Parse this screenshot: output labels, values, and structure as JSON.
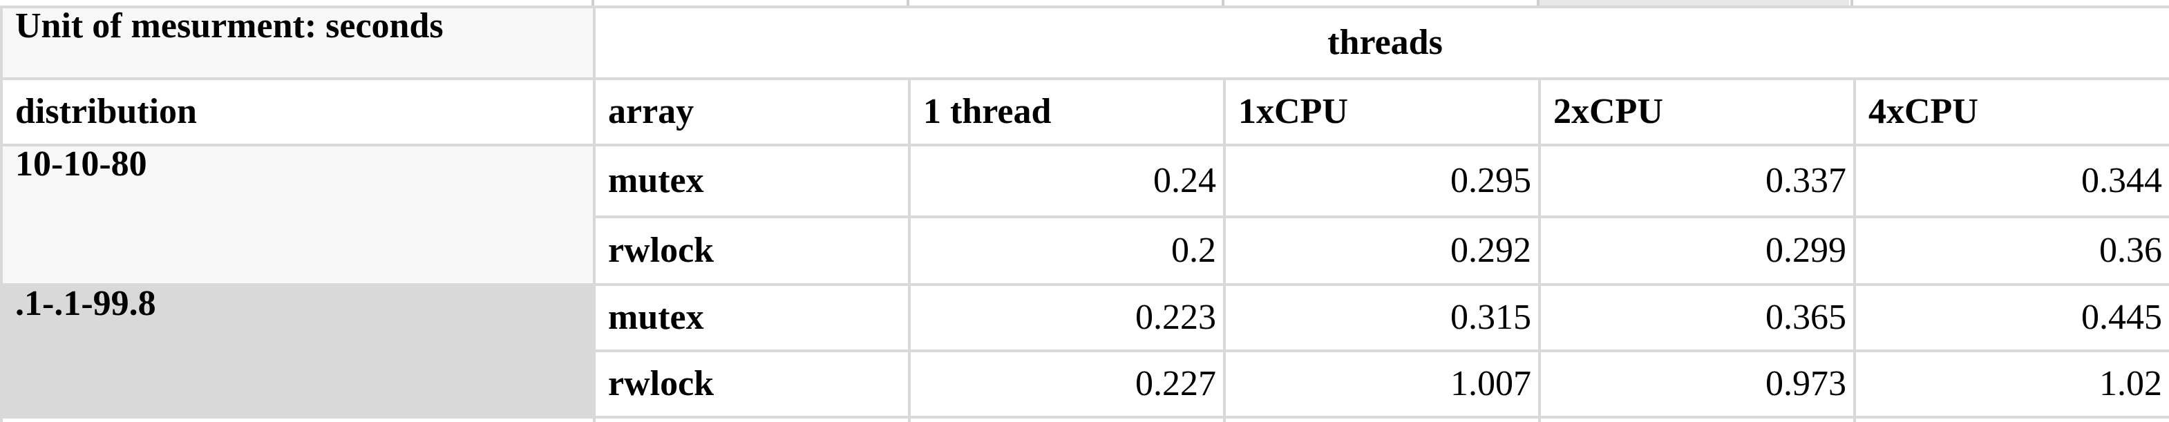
{
  "sheet": {
    "unit_label": "Unit of mesurment: seconds",
    "group_header": "threads",
    "columns": {
      "distribution": "distribution",
      "array": "array",
      "c1": "1 thread",
      "c2": "1xCPU",
      "c3": "2xCPU",
      "c4": "4xCPU"
    },
    "rows": [
      {
        "distribution": "10-10-80",
        "array": "mutex",
        "values": [
          "0.24",
          "0.295",
          "0.337",
          "0.344"
        ]
      },
      {
        "distribution": "",
        "array": "rwlock",
        "values": [
          "0.2",
          "0.292",
          "0.299",
          "0.36"
        ]
      },
      {
        "distribution": ".1-.1-99.8",
        "array": "mutex",
        "values": [
          "0.223",
          "0.315",
          "0.365",
          "0.445"
        ]
      },
      {
        "distribution": "",
        "array": "rwlock",
        "values": [
          "0.227",
          "1.007",
          "0.973",
          "1.02"
        ]
      }
    ]
  },
  "colors": {
    "grid_line": "#d9d9d9",
    "selected_fill": "#d9d9d9",
    "header_fill": "#f8f8f8"
  }
}
